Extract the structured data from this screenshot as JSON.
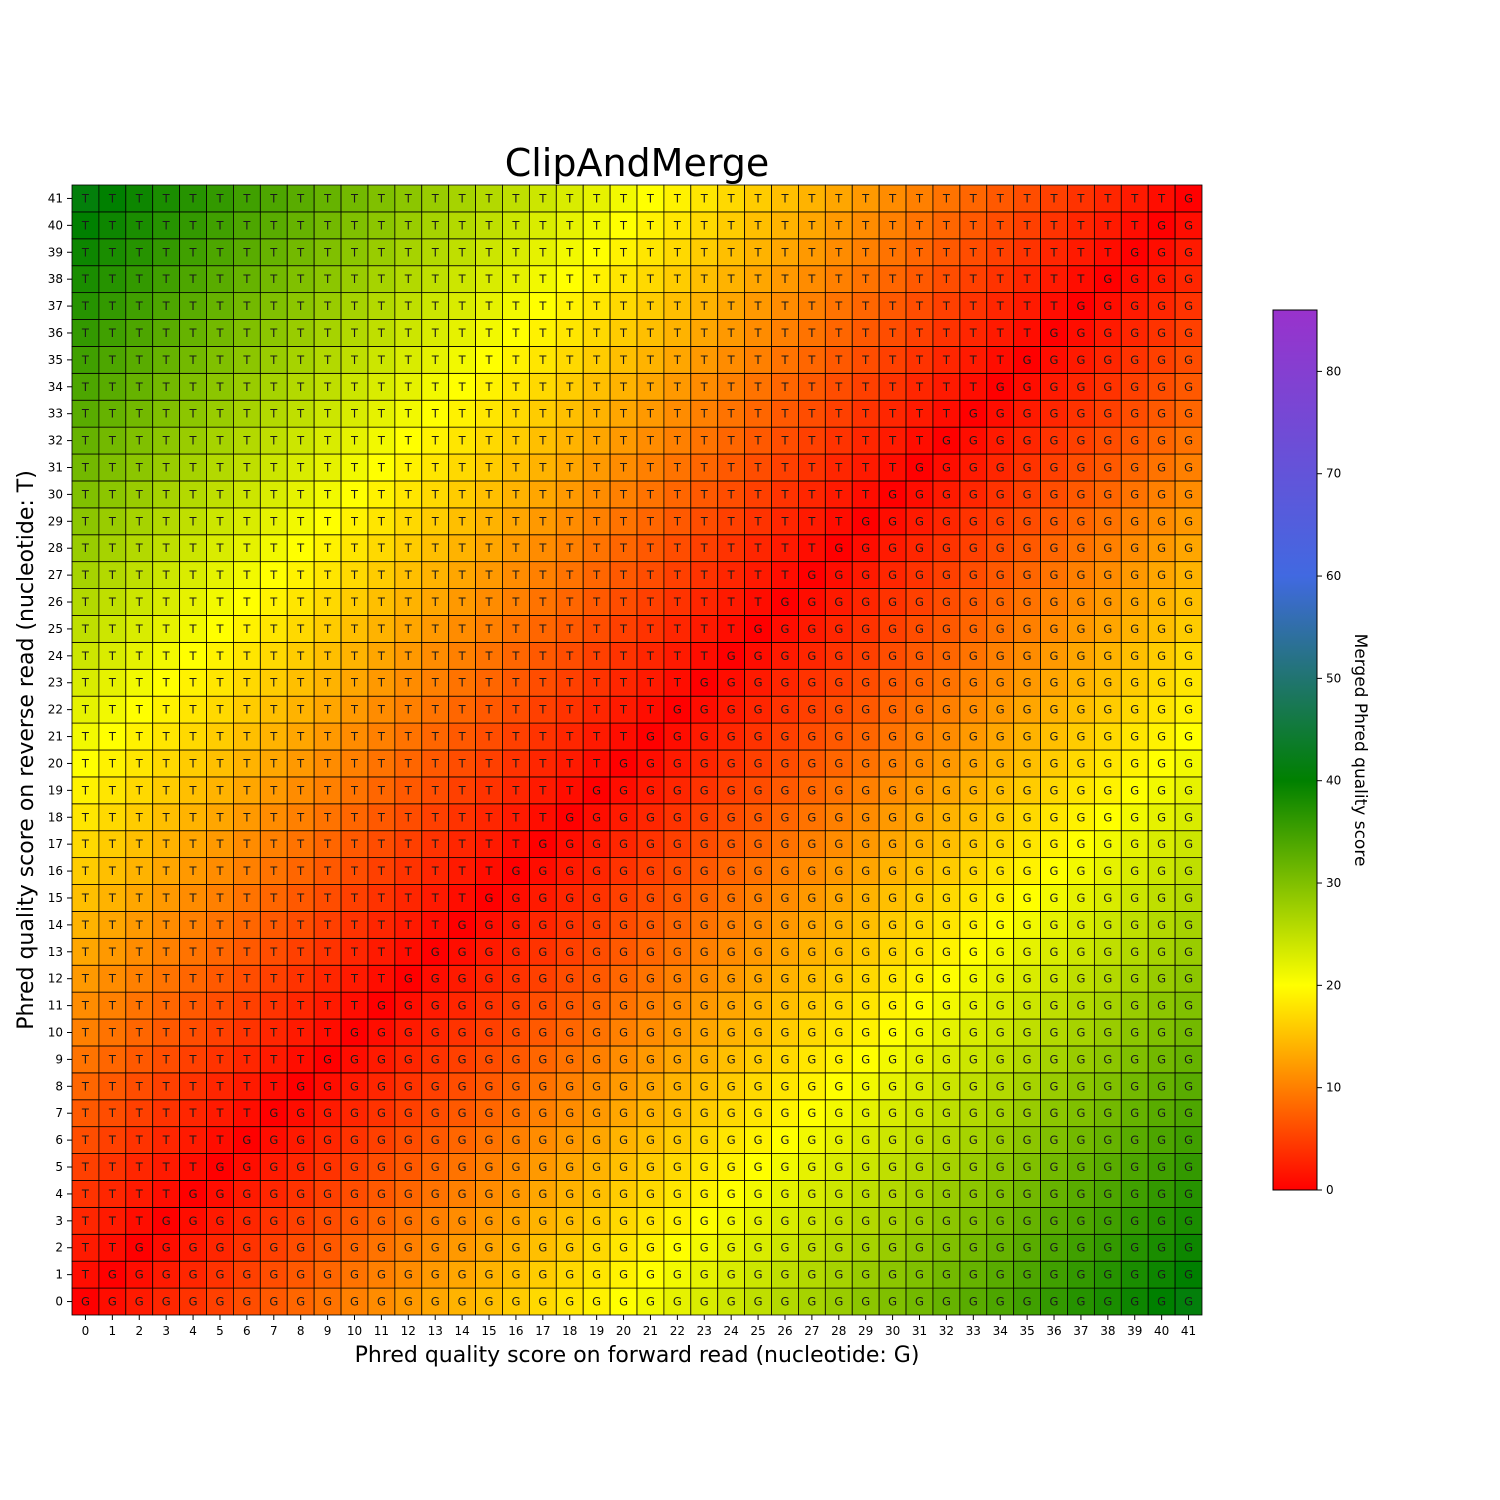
{
  "chart_data": {
    "type": "heatmap",
    "title": "ClipAndMerge",
    "xlabel": "Phred quality score on forward read (nucleotide: G)",
    "ylabel": "Phred quality score on reverse read (nucleotide: T)",
    "x_range": [
      0,
      41
    ],
    "y_range": [
      0,
      41
    ],
    "cell_value_rule": "merged score = |forward - reverse|; label = G when forward >= reverse, otherwise T",
    "colorbar": {
      "label": "Merged Phred quality score",
      "range": [
        0,
        86
      ],
      "ticks": [
        0,
        10,
        20,
        30,
        40,
        50,
        60,
        70,
        80
      ],
      "stops": [
        {
          "value": 0,
          "color": "#ff0000"
        },
        {
          "value": 20,
          "color": "#ffff00"
        },
        {
          "value": 40,
          "color": "#008000"
        },
        {
          "value": 60,
          "color": "#4169e1"
        },
        {
          "value": 86,
          "color": "#9932cc"
        }
      ]
    },
    "grid": true,
    "legend": "colorbar-right"
  }
}
